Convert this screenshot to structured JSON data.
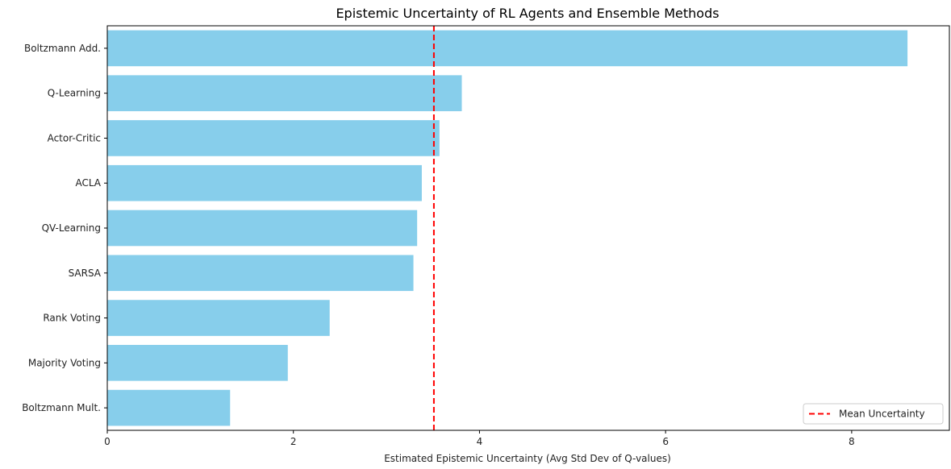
{
  "chart_data": {
    "type": "bar",
    "orientation": "horizontal",
    "title": "Epistemic Uncertainty of RL Agents and Ensemble Methods",
    "xlabel": "Estimated Epistemic Uncertainty (Avg Std Dev of Q-values)",
    "ylabel": "",
    "categories": [
      "Boltzmann Add.",
      "Q-Learning",
      "Actor-Critic",
      "ACLA",
      "QV-Learning",
      "SARSA",
      "Rank Voting",
      "Majority Voting",
      "Boltzmann Mult."
    ],
    "values": [
      8.6,
      3.81,
      3.57,
      3.38,
      3.33,
      3.29,
      2.39,
      1.94,
      1.32
    ],
    "xlim": [
      0,
      9.05
    ],
    "xticks": [
      0,
      2,
      4,
      6,
      8
    ],
    "mean_line": {
      "value": 3.51,
      "label": "Mean Uncertainty",
      "color": "#ff0000"
    },
    "bar_color": "#87ceeb",
    "grid": false,
    "legend_position": "lower-right"
  }
}
